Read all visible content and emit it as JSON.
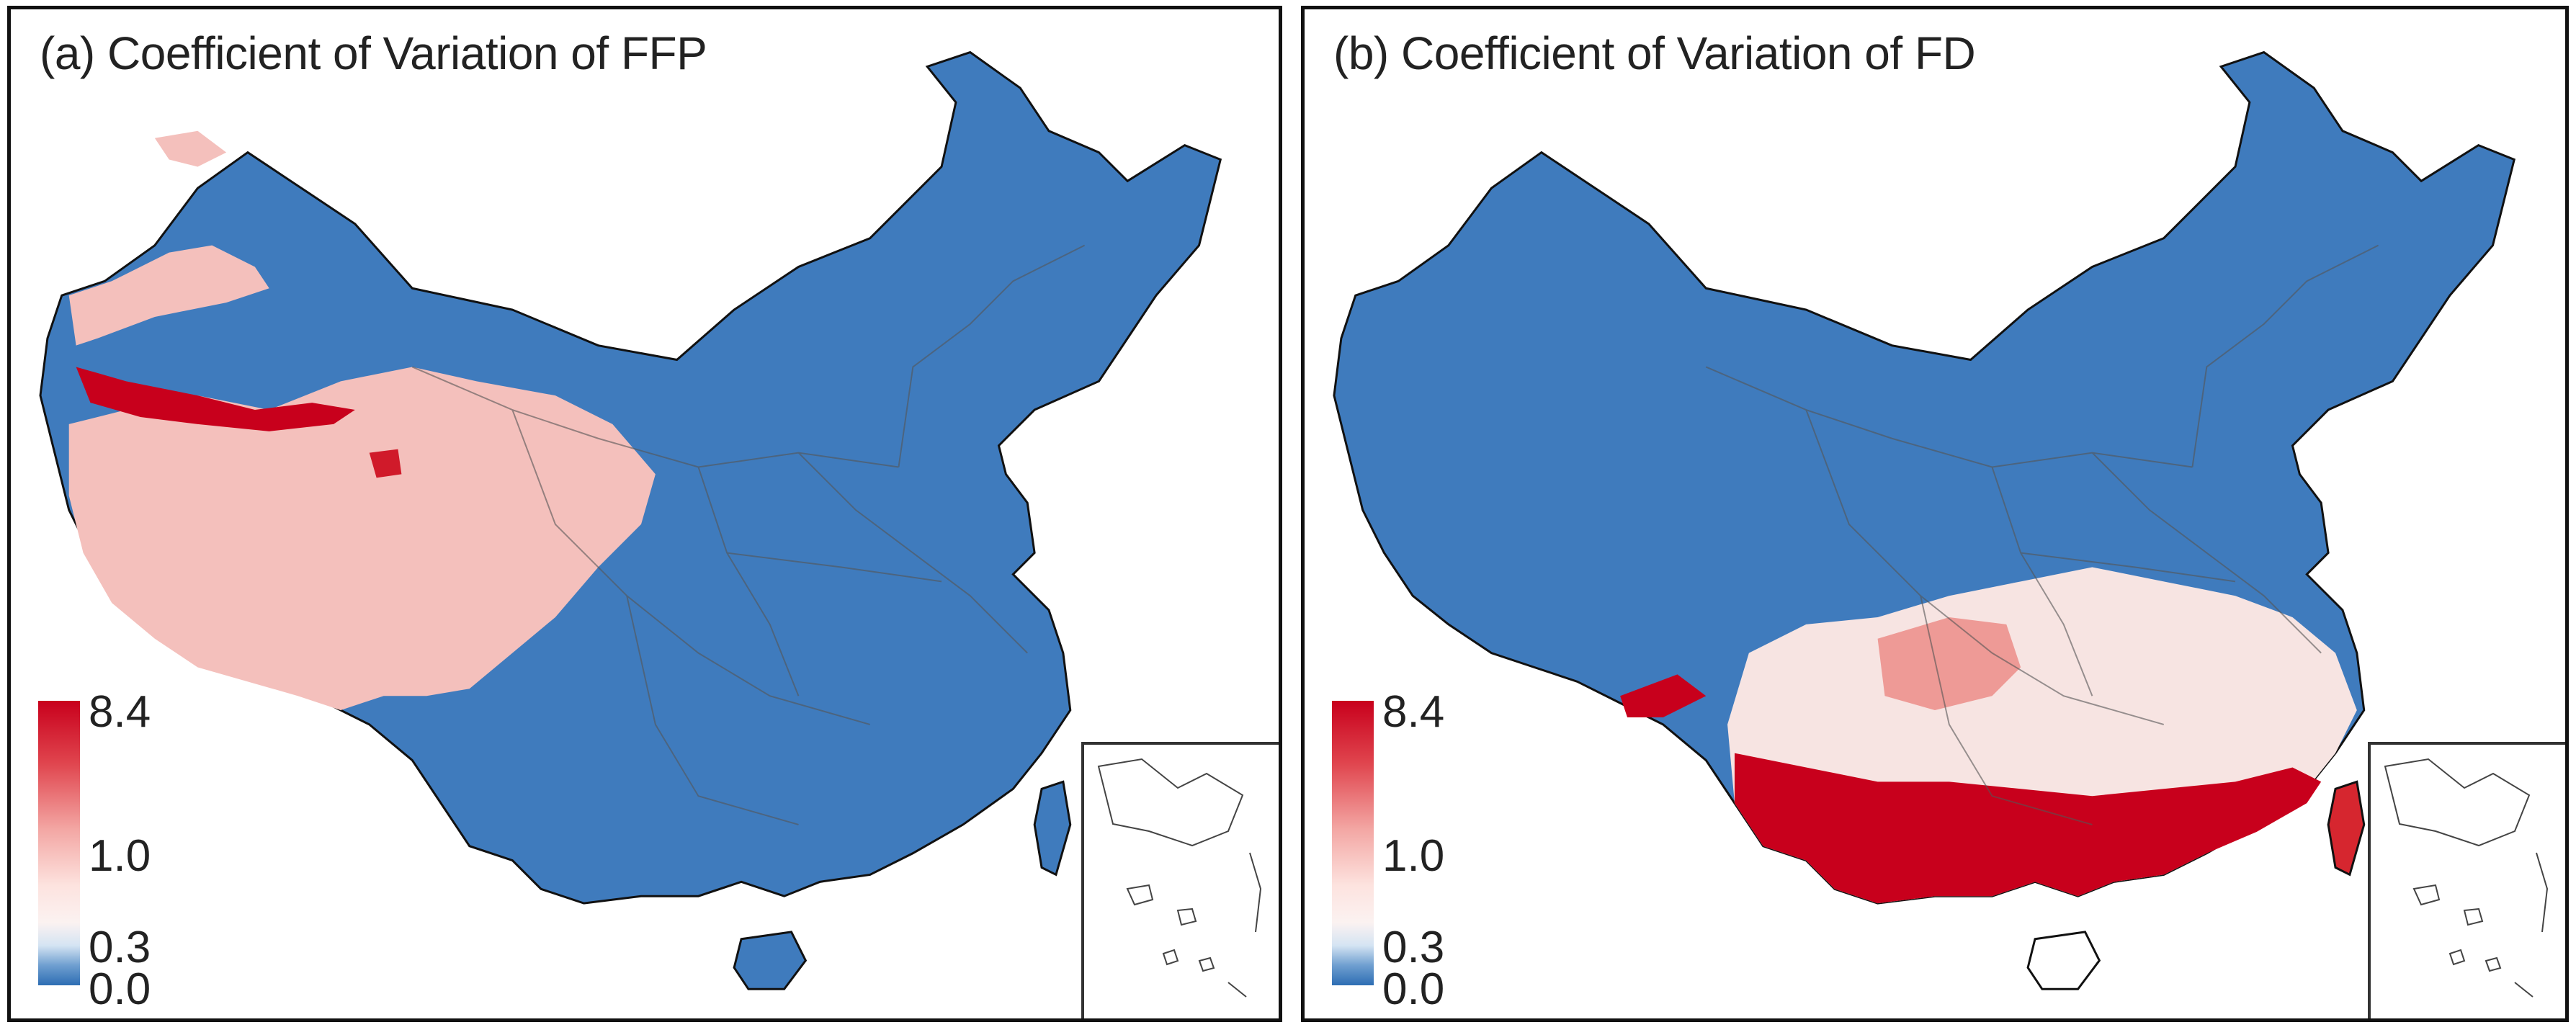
{
  "panels": [
    {
      "title": "(a) Coefficient of Variation of FFP",
      "colorbar": {
        "ticks": [
          "8.4",
          "1.0",
          "0.3",
          "0.0"
        ]
      }
    },
    {
      "title": "(b) Coefficient of Variation of FD",
      "colorbar": {
        "ticks": [
          "8.4",
          "1.0",
          "0.3",
          "0.0"
        ]
      }
    }
  ],
  "colors": {
    "high": "#c8001c",
    "mid_high": "#f3a6a3",
    "neutral": "#fbf2f1",
    "low": "#2d6db3",
    "border": "#111111"
  }
}
